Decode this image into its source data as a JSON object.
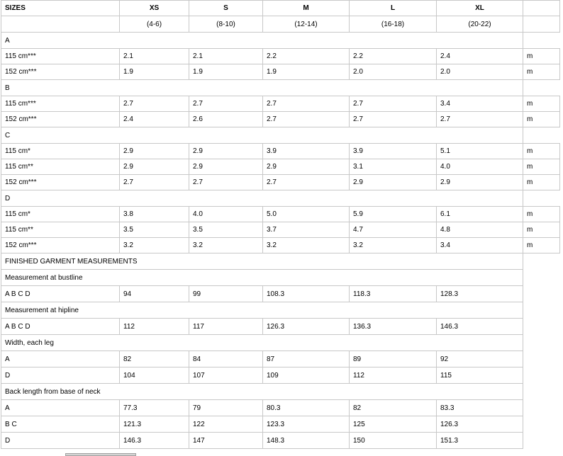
{
  "sizes_label": "SIZES",
  "sizes": [
    {
      "name": "XS",
      "range": "(4-6)"
    },
    {
      "name": "S",
      "range": "(8-10)"
    },
    {
      "name": "M",
      "range": "(12-14)"
    },
    {
      "name": "L",
      "range": "(16-18)"
    },
    {
      "name": "XL",
      "range": "(20-22)"
    }
  ],
  "fabric_sections": [
    {
      "label": "A",
      "rows": [
        {
          "fabric": "115 cm***",
          "values": [
            "2.1",
            "2.1",
            "2.2",
            "2.2",
            "2.4"
          ],
          "unit": "m"
        },
        {
          "fabric": "152 cm***",
          "values": [
            "1.9",
            "1.9",
            "1.9",
            "2.0",
            "2.0"
          ],
          "unit": "m"
        }
      ]
    },
    {
      "label": "B",
      "rows": [
        {
          "fabric": "115 cm***",
          "values": [
            "2.7",
            "2.7",
            "2.7",
            "2.7",
            "3.4"
          ],
          "unit": "m"
        },
        {
          "fabric": "152 cm***",
          "values": [
            "2.4",
            "2.6",
            "2.7",
            "2.7",
            "2.7"
          ],
          "unit": "m"
        }
      ]
    },
    {
      "label": "C",
      "rows": [
        {
          "fabric": "115 cm*",
          "values": [
            "2.9",
            "2.9",
            "3.9",
            "3.9",
            "5.1"
          ],
          "unit": "m"
        },
        {
          "fabric": "115 cm**",
          "values": [
            "2.9",
            "2.9",
            "2.9",
            "3.1",
            "4.0"
          ],
          "unit": "m"
        },
        {
          "fabric": "152 cm***",
          "values": [
            "2.7",
            "2.7",
            "2.7",
            "2.9",
            "2.9"
          ],
          "unit": "m"
        }
      ]
    },
    {
      "label": "D",
      "rows": [
        {
          "fabric": "115 cm*",
          "values": [
            "3.8",
            "4.0",
            "5.0",
            "5.9",
            "6.1"
          ],
          "unit": "m"
        },
        {
          "fabric": "115 cm**",
          "values": [
            "3.5",
            "3.5",
            "3.7",
            "4.7",
            "4.8"
          ],
          "unit": "m"
        },
        {
          "fabric": "152 cm***",
          "values": [
            "3.2",
            "3.2",
            "3.2",
            "3.2",
            "3.4"
          ],
          "unit": "m"
        }
      ]
    }
  ],
  "finished_title": "FINISHED GARMENT MEASUREMENTS",
  "measurement_sections": [
    {
      "label": "Measurement at bustline",
      "rows": [
        {
          "view": "A B C D",
          "values": [
            "94",
            "99",
            "108.3",
            "118.3",
            "128.3"
          ]
        }
      ]
    },
    {
      "label": "Measurement at hipline",
      "rows": [
        {
          "view": "A B C D",
          "values": [
            "112",
            "117",
            "126.3",
            "136.3",
            "146.3"
          ]
        }
      ]
    },
    {
      "label": "Width, each leg",
      "rows": [
        {
          "view": "A",
          "values": [
            "82",
            "84",
            "87",
            "89",
            "92"
          ]
        },
        {
          "view": "D",
          "values": [
            "104",
            "107",
            "109",
            "112",
            "115"
          ]
        }
      ]
    },
    {
      "label": "Back length from base of neck",
      "rows": [
        {
          "view": "A",
          "values": [
            "77.3",
            "79",
            "80.3",
            "82",
            "83.3"
          ]
        },
        {
          "view": "B C",
          "values": [
            "121.3",
            "122",
            "123.3",
            "125",
            "126.3"
          ]
        },
        {
          "view": "D",
          "values": [
            "146.3",
            "147",
            "148.3",
            "150",
            "151.3"
          ]
        }
      ]
    }
  ]
}
